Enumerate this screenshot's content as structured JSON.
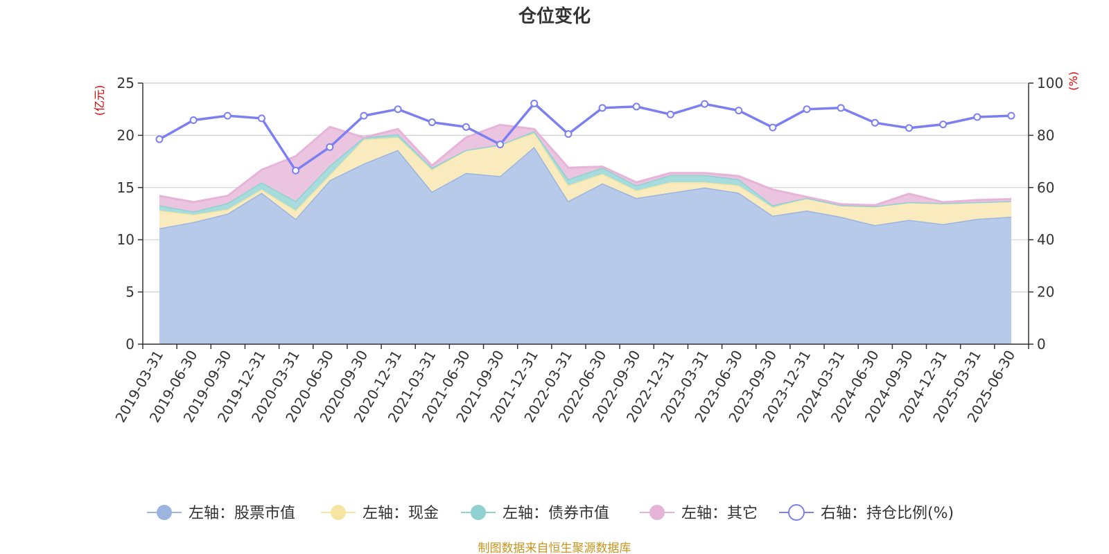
{
  "chart_data": {
    "type": "area",
    "title": "仓位变化",
    "left_unit": "(亿元)",
    "right_unit": "(%)",
    "left_ylim": [
      0,
      25
    ],
    "left_ticks": [
      "0",
      "5",
      "10",
      "15",
      "20",
      "25"
    ],
    "right_ylim": [
      0,
      100
    ],
    "right_ticks": [
      "0",
      "20",
      "40",
      "60",
      "80",
      "100"
    ],
    "categories": [
      "2019-03-31",
      "2019-06-30",
      "2019-09-30",
      "2019-12-31",
      "2020-03-31",
      "2020-06-30",
      "2020-09-30",
      "2020-12-31",
      "2021-03-31",
      "2021-06-30",
      "2021-09-30",
      "2021-12-31",
      "2022-03-31",
      "2022-06-30",
      "2022-09-30",
      "2022-12-31",
      "2023-03-31",
      "2023-06-30",
      "2023-09-30",
      "2023-12-31",
      "2024-03-31",
      "2024-06-30",
      "2024-09-30",
      "2024-12-31",
      "2025-03-31",
      "2025-06-30"
    ],
    "stacked_series": [
      {
        "name": "左轴：股票市值",
        "color": "#9bb5e0",
        "fill": "#b7cae9",
        "values": [
          11.1,
          11.7,
          12.5,
          14.5,
          12.0,
          15.7,
          17.3,
          18.6,
          14.6,
          16.4,
          16.1,
          18.9,
          13.7,
          15.4,
          14.0,
          14.5,
          15.0,
          14.5,
          12.3,
          12.8,
          12.2,
          11.4,
          11.9,
          11.5,
          12.0,
          12.2
        ]
      },
      {
        "name": "左轴：现金",
        "color": "#f7e5a3",
        "fill": "#faebbe",
        "values": [
          1.7,
          0.7,
          0.4,
          0.3,
          0.8,
          0.5,
          2.3,
          1.2,
          2.1,
          2.2,
          3.0,
          1.3,
          1.5,
          0.9,
          0.7,
          1.0,
          0.5,
          0.7,
          0.8,
          1.2,
          1.1,
          1.8,
          1.7,
          2.0,
          1.6,
          1.5
        ]
      },
      {
        "name": "左轴：债券市值",
        "color": "#8fd1d1",
        "fill": "#a8dcdc",
        "values": [
          0.5,
          0.3,
          0.6,
          0.7,
          0.9,
          0.9,
          0.2,
          0.3,
          0.2,
          0.0,
          0.0,
          0.2,
          0.6,
          0.6,
          0.5,
          0.7,
          0.7,
          0.6,
          0.2,
          0.0,
          0.0,
          0.0,
          0.0,
          0.0,
          0.0,
          0.0
        ]
      },
      {
        "name": "左轴：其它",
        "color": "#e6b3d9",
        "fill": "#ebc4df",
        "values": [
          0.9,
          0.9,
          0.7,
          1.2,
          4.3,
          3.7,
          0.0,
          0.5,
          0.2,
          1.2,
          1.9,
          0.2,
          1.1,
          0.1,
          0.3,
          0.2,
          0.2,
          0.3,
          1.5,
          0.1,
          0.1,
          0.1,
          0.8,
          0.1,
          0.2,
          0.2
        ]
      }
    ],
    "line_series": {
      "name": "右轴：持仓比例(%)",
      "color": "#7b7ff0",
      "values": [
        78.5,
        85.8,
        87.5,
        86.5,
        66.5,
        75.5,
        87.5,
        90.0,
        85.0,
        83.2,
        76.5,
        92.2,
        80.5,
        90.5,
        91.0,
        88.0,
        92.0,
        89.5,
        83.0,
        90.0,
        90.5,
        84.8,
        82.8,
        84.2,
        87.0,
        87.5
      ]
    },
    "legend": [
      {
        "label": "左轴：股票市值",
        "color": "#9bb5e0",
        "kind": "area"
      },
      {
        "label": "左轴：现金",
        "color": "#f7e5a3",
        "kind": "area"
      },
      {
        "label": "左轴：债券市值",
        "color": "#8fd1d1",
        "kind": "area"
      },
      {
        "label": "左轴：其它",
        "color": "#e6b3d9",
        "kind": "area"
      },
      {
        "label": "右轴：持仓比例(%)",
        "color": "#7b7ff0",
        "kind": "line"
      }
    ],
    "legend_position": "bottom",
    "grid": true,
    "source_text": "制图数据来自恒生聚源数据库"
  }
}
